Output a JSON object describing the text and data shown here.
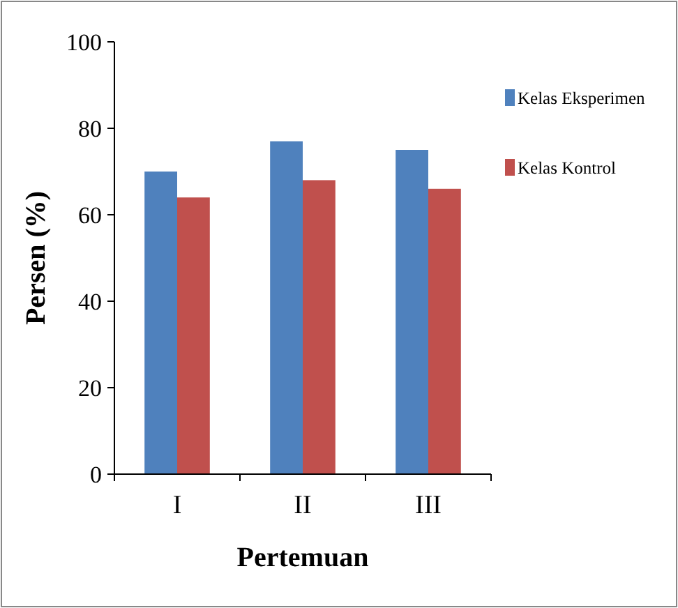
{
  "chart_data": {
    "type": "bar",
    "xlabel": "Pertemuan",
    "ylabel": "Persen (%)",
    "categories": [
      "I",
      "II",
      "III"
    ],
    "series": [
      {
        "name": "Kelas Eksperimen",
        "color": "#4f81bd",
        "values": [
          70,
          77,
          75
        ]
      },
      {
        "name": "Kelas Kontrol",
        "color": "#c0504d",
        "values": [
          64,
          68,
          66
        ]
      }
    ],
    "ylim": [
      0,
      100
    ],
    "yticks": [
      0,
      20,
      40,
      60,
      80,
      100
    ],
    "grid": false,
    "legend": "right"
  }
}
